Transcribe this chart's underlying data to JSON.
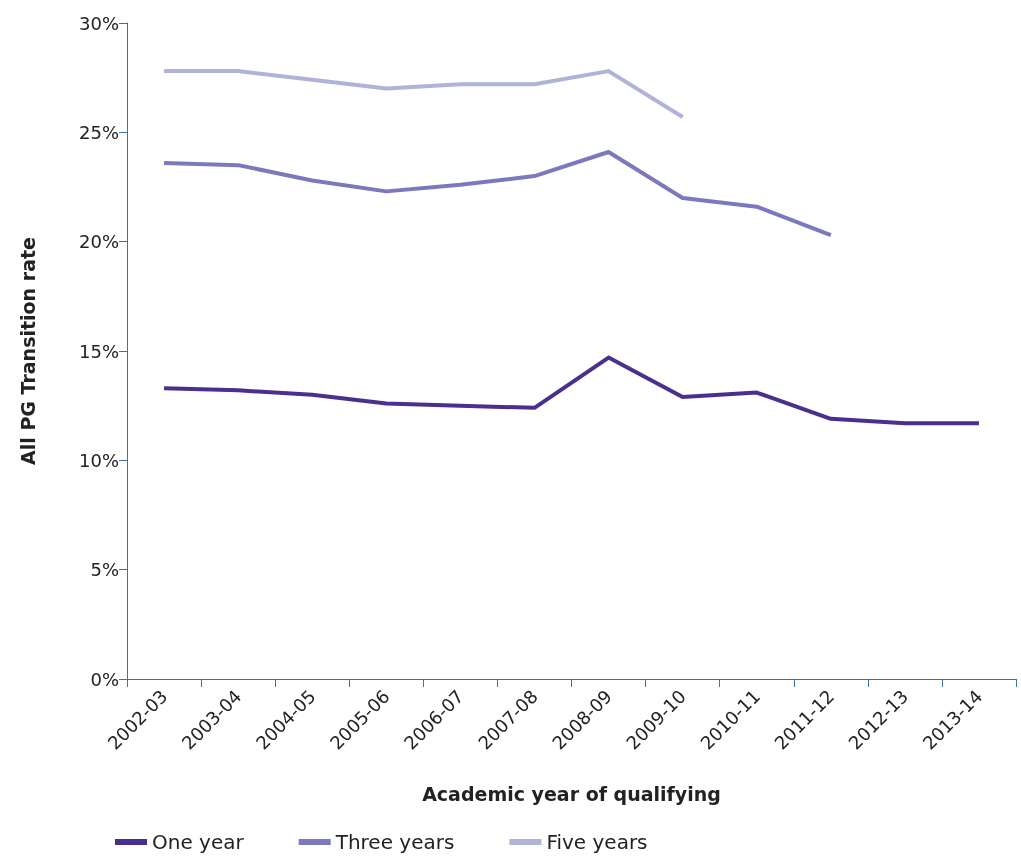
{
  "chart_data": {
    "type": "line",
    "xlabel": "Academic year of qualifying",
    "ylabel": "All PG Transition rate",
    "categories": [
      "2002-03",
      "2003-04",
      "2004-05",
      "2005-06",
      "2006-07",
      "2007-08",
      "2008-09",
      "2009-10",
      "2010-11",
      "2011-12",
      "2012-13",
      "2013-14"
    ],
    "series": [
      {
        "name": "One year",
        "color": "#4a2f8f",
        "values": [
          13.3,
          13.2,
          13.0,
          12.6,
          12.5,
          12.4,
          14.7,
          12.9,
          13.1,
          11.9,
          11.7,
          11.7
        ]
      },
      {
        "name": "Three years",
        "color": "#7b78bd",
        "values": [
          23.6,
          23.5,
          22.8,
          22.3,
          22.6,
          23.0,
          24.1,
          22.0,
          21.6,
          20.3,
          null,
          null
        ]
      },
      {
        "name": "Five years",
        "color": "#b0b3d8",
        "values": [
          27.8,
          27.8,
          27.4,
          27.0,
          27.2,
          27.2,
          27.8,
          25.7,
          null,
          null,
          null,
          null
        ]
      }
    ],
    "ylim": [
      0,
      30
    ],
    "yticks": [
      {
        "value": 0,
        "label": "0%"
      },
      {
        "value": 5,
        "label": "5%"
      },
      {
        "value": 10,
        "label": "10%"
      },
      {
        "value": 15,
        "label": "15%"
      },
      {
        "value": 20,
        "label": "20%"
      },
      {
        "value": 25,
        "label": "25%"
      },
      {
        "value": 30,
        "label": "30%"
      }
    ],
    "grid": false,
    "legend": "bottom",
    "marker": "none",
    "line_style": "solid"
  }
}
